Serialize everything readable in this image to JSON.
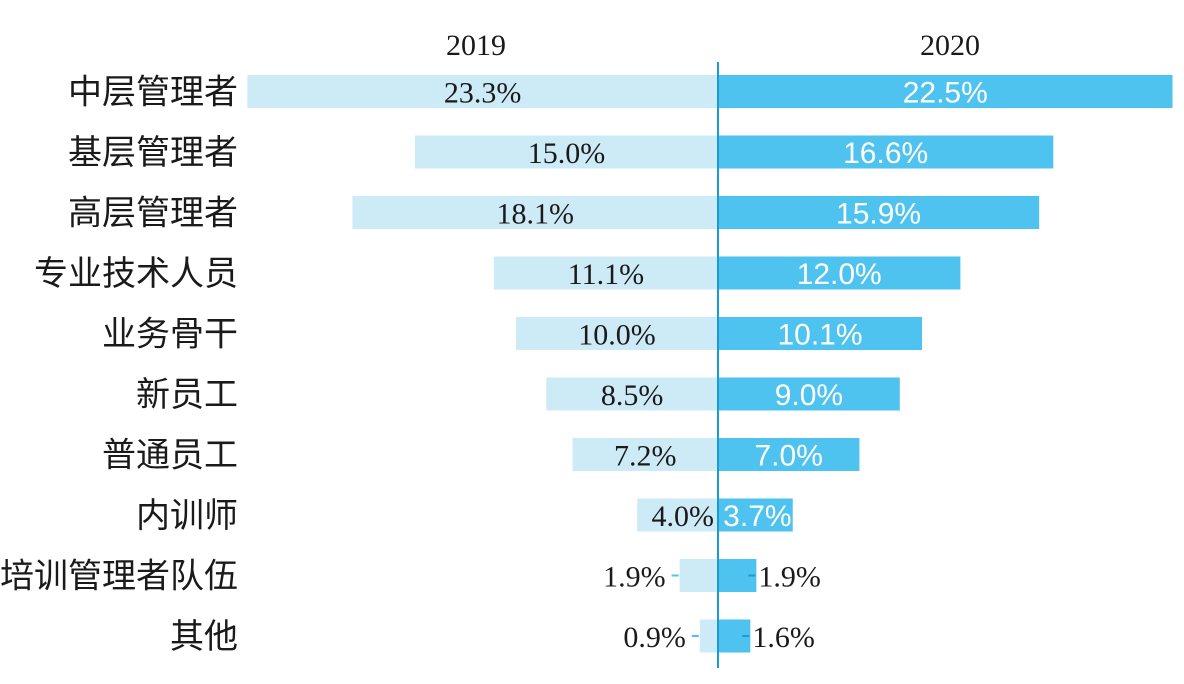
{
  "chart_data": {
    "type": "bar",
    "orientation": "horizontal-diverging",
    "categories": [
      "中层管理者",
      "基层管理者",
      "高层管理者",
      "专业技术人员",
      "业务骨干",
      "新员工",
      "普通员工",
      "内训师",
      "培训管理者队伍",
      "其他"
    ],
    "series": [
      {
        "name": "2019",
        "values": [
          23.3,
          15.0,
          18.1,
          11.1,
          10.0,
          8.5,
          7.2,
          4.0,
          1.9,
          0.9
        ],
        "labels": [
          "23.3%",
          "15.0%",
          "18.1%",
          "11.1%",
          "10.0%",
          "8.5%",
          "7.2%",
          "4.0%",
          "1.9%",
          "0.9%"
        ],
        "color": "#cdeaf7"
      },
      {
        "name": "2020",
        "values": [
          22.5,
          16.6,
          15.9,
          12.0,
          10.1,
          9.0,
          7.0,
          3.7,
          1.9,
          1.6
        ],
        "labels": [
          "22.5%",
          "16.6%",
          "15.9%",
          "12.0%",
          "10.1%",
          "9.0%",
          "7.0%",
          "3.7%",
          "1.9%",
          "1.6%"
        ],
        "color": "#4fc3f0"
      }
    ],
    "axis_color": "#1a9ad6",
    "grid": false,
    "legend": "none"
  }
}
